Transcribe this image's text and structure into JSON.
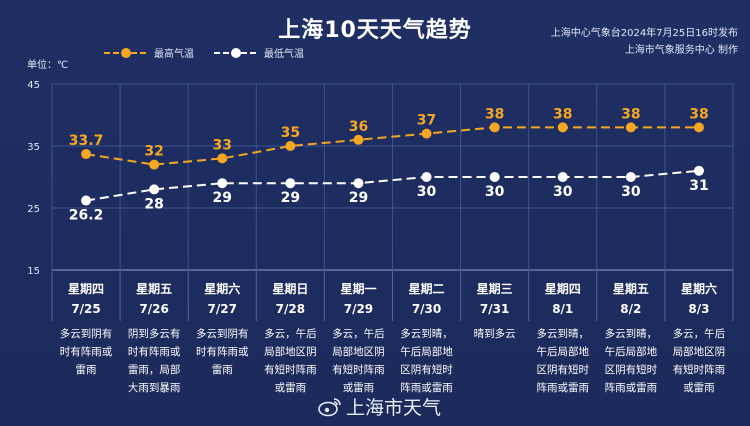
{
  "header": {
    "title": "上海10天天气趋势",
    "source_line1": "上海中心气象台2024年7月25日16时发布",
    "source_line2": "上海市气象服务中心 制作"
  },
  "chart_data": {
    "type": "line",
    "ylabel": "单位：℃",
    "ylim": [
      15,
      45
    ],
    "yticks": [
      15,
      25,
      35,
      45
    ],
    "grid": true,
    "legend_position": "top-left",
    "categories": [
      "7/25",
      "7/26",
      "7/27",
      "7/28",
      "7/29",
      "7/30",
      "7/31",
      "8/1",
      "8/2",
      "8/3"
    ],
    "series": [
      {
        "name": "最高气温",
        "color": "#f5a623",
        "values": [
          33.7,
          32,
          33,
          35,
          36,
          37,
          38,
          38,
          38,
          38
        ],
        "labels": [
          "33.7",
          "32",
          "33",
          "35",
          "36",
          "37",
          "38",
          "38",
          "38",
          "38"
        ]
      },
      {
        "name": "最低气温",
        "color": "#ffffff",
        "values": [
          26.2,
          28,
          29,
          29,
          29,
          30,
          30,
          30,
          30,
          31
        ],
        "labels": [
          "26.2",
          "28",
          "29",
          "29",
          "29",
          "30",
          "30",
          "30",
          "30",
          "31"
        ]
      }
    ]
  },
  "days": [
    {
      "weekday": "星期四",
      "date": "7/25",
      "desc": [
        "多云到阴有",
        "时有阵雨或",
        "雷雨"
      ]
    },
    {
      "weekday": "星期五",
      "date": "7/26",
      "desc": [
        "阴到多云有",
        "时有阵雨或",
        "雷雨，局部",
        "大雨到暴雨"
      ]
    },
    {
      "weekday": "星期六",
      "date": "7/27",
      "desc": [
        "多云到阴有",
        "时有阵雨或",
        "雷雨"
      ]
    },
    {
      "weekday": "星期日",
      "date": "7/28",
      "desc": [
        "多云，午后",
        "局部地区阴",
        "有短时阵雨",
        "或雷雨"
      ]
    },
    {
      "weekday": "星期一",
      "date": "7/29",
      "desc": [
        "多云，午后",
        "局部地区阴",
        "有短时阵雨",
        "或雷雨"
      ]
    },
    {
      "weekday": "星期二",
      "date": "7/30",
      "desc": [
        "多云到晴，",
        "午后局部地",
        "区阴有短时",
        "阵雨或雷雨"
      ]
    },
    {
      "weekday": "星期三",
      "date": "7/31",
      "desc": [
        "晴到多云"
      ]
    },
    {
      "weekday": "星期四",
      "date": "8/1",
      "desc": [
        "多云到晴，",
        "午后局部地",
        "区阴有短时",
        "阵雨或雷雨"
      ]
    },
    {
      "weekday": "星期五",
      "date": "8/2",
      "desc": [
        "多云到晴，",
        "午后局部地",
        "区阴有短时",
        "阵雨或雷雨"
      ]
    },
    {
      "weekday": "星期六",
      "date": "8/3",
      "desc": [
        "多云，午后",
        "局部地区阴",
        "有短时阵雨",
        "或雷雨"
      ]
    }
  ],
  "footer": {
    "account": "上海市天气",
    "icon": "weibo-icon"
  }
}
